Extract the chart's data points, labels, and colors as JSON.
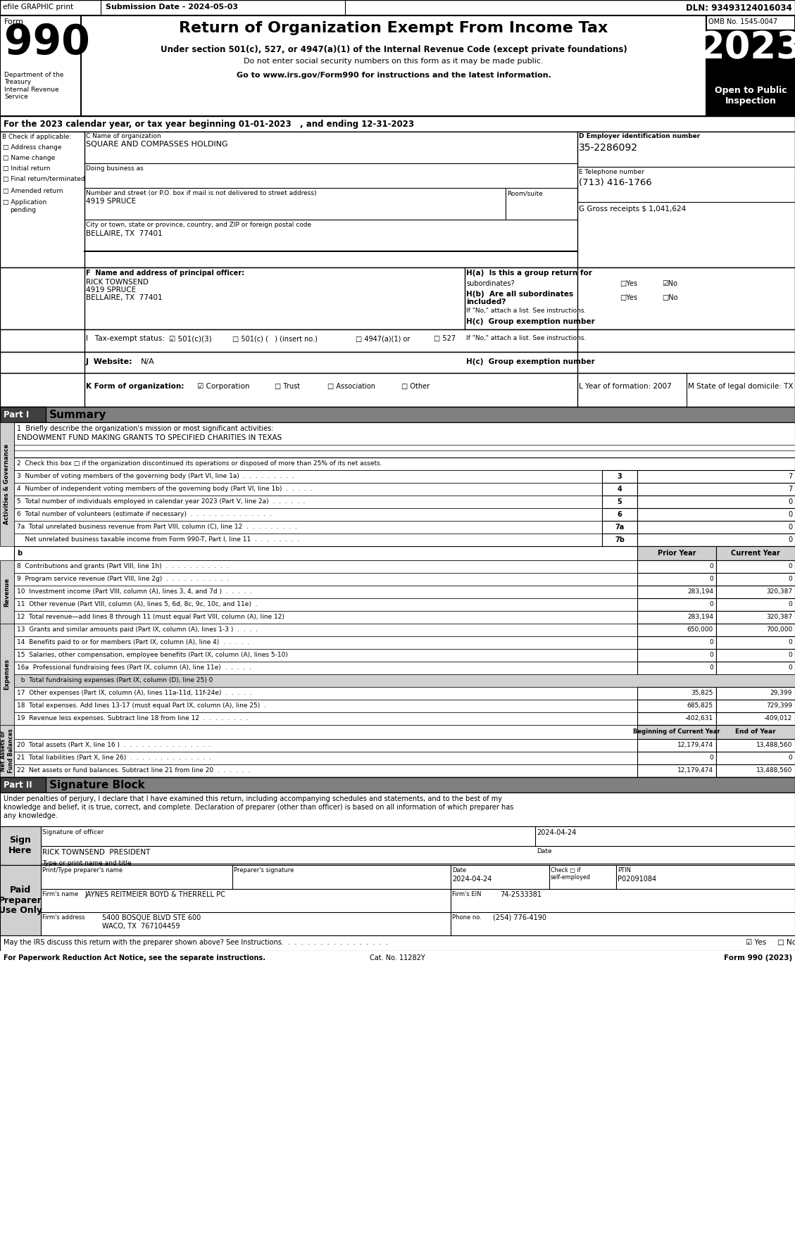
{
  "efile_text": "efile GRAPHIC print",
  "submission_date": "Submission Date - 2024-05-03",
  "dln": "DLN: 93493124016034",
  "form_label": "Form",
  "title": "Return of Organization Exempt From Income Tax",
  "subtitle1": "Under section 501(c), 527, or 4947(a)(1) of the Internal Revenue Code (except private foundations)",
  "subtitle2": "Do not enter social security numbers on this form as it may be made public.",
  "subtitle3": "Go to www.irs.gov/Form990 for instructions and the latest information.",
  "year": "2023",
  "omb": "OMB No. 1545-0047",
  "open_public": "Open to Public\nInspection",
  "dept_treasury": "Department of the\nTreasury\nInternal Revenue\nService",
  "tax_year_line": "For the 2023 calendar year, or tax year beginning 01-01-2023   , and ending 12-31-2023",
  "check_applicable_label": "B Check if applicable:",
  "check_items": [
    "Address change",
    "Name change",
    "Initial return",
    "Final return/terminated",
    "Amended return",
    "Application\npending"
  ],
  "org_name_label": "C Name of organization",
  "org_name": "SQUARE AND COMPASSES HOLDING",
  "dba_label": "Doing business as",
  "street_label": "Number and street (or P.O. box if mail is not delivered to street address)",
  "room_label": "Room/suite",
  "street": "4919 SPRUCE",
  "city_label": "City or town, state or province, country, and ZIP or foreign postal code",
  "city": "BELLAIRE, TX  77401",
  "ein_label": "D Employer identification number",
  "ein": "35-2286092",
  "phone_label": "E Telephone number",
  "phone": "(713) 416-1766",
  "gross_receipts": "G Gross receipts $ 1,041,624",
  "principal_officer_label": "F  Name and address of principal officer:",
  "principal_officer_line1": "RICK TOWNSEND",
  "principal_officer_line2": "4919 SPRUCE",
  "principal_officer_line3": "BELLAIRE, TX  77401",
  "ha_label": "H(a)  Is this a group return for",
  "ha_sub": "subordinates?",
  "hb_label_line1": "H(b)  Are all subordinates",
  "hb_label_line2": "included?",
  "hb_note": "If \"No,\" attach a list. See instructions.",
  "hc_label": "H(c)  Group exemption number",
  "tax_exempt_label": "I   Tax-exempt status:",
  "tax_501c3": "☑ 501(c)(3)",
  "tax_501c": "□ 501(c) (   ) (insert no.)",
  "tax_4947": "□ 4947(a)(1) or",
  "tax_527": "□ 527",
  "website_label": "J  Website:",
  "website": "N/A",
  "form_org_label": "K Form of organization:",
  "form_org_corp": "☑ Corporation",
  "form_org_trust": "□ Trust",
  "form_org_assoc": "□ Association",
  "form_org_other": "□ Other",
  "year_form": "L Year of formation: 2007",
  "state_domicile": "M State of legal domicile: TX",
  "part1_label": "Part I",
  "part1_title": "Summary",
  "line1_label": "1  Briefly describe the organization's mission or most significant activities:",
  "line1_value": "ENDOWMENT FUND MAKING GRANTS TO SPECIFIED CHARITIES IN TEXAS",
  "line2_label": "2  Check this box □ if the organization discontinued its operations or disposed of more than 25% of its net assets.",
  "line3_label": "3  Number of voting members of the governing body (Part VI, line 1a)  .  .  .  .  .  .  .  .  .",
  "line3_num": "3",
  "line3_val": "7",
  "line4_label": "4  Number of independent voting members of the governing body (Part VI, line 1b)  .  .  .  .  .",
  "line4_num": "4",
  "line4_val": "7",
  "line5_label": "5  Total number of individuals employed in calendar year 2023 (Part V, line 2a)  .  .  .  .  .  .",
  "line5_num": "5",
  "line5_val": "0",
  "line6_label": "6  Total number of volunteers (estimate if necessary)  .  .  .  .  .  .  .  .  .  .  .  .  .  .",
  "line6_num": "6",
  "line6_val": "0",
  "line7a_label": "7a  Total unrelated business revenue from Part VIII, column (C), line 12  .  .  .  .  .  .  .  .  .",
  "line7a_num": "7a",
  "line7a_val": "0",
  "line7b_label": "    Net unrelated business taxable income from Form 990-T, Part I, line 11  .  .  .  .  .  .  .  .",
  "line7b_num": "7b",
  "line7b_val": "0",
  "col_prior": "Prior Year",
  "col_current": "Current Year",
  "line8_label": "8  Contributions and grants (Part VIII, line 1h)  .  .  .  .  .  .  .  .  .  .  .",
  "line8_prior": "0",
  "line8_current": "0",
  "line9_label": "9  Program service revenue (Part VIII, line 2g)  .  .  .  .  .  .  .  .  .  .  .",
  "line9_prior": "0",
  "line9_current": "0",
  "line10_label": "10  Investment income (Part VIII, column (A), lines 3, 4, and 7d )  .  .  .  .  .",
  "line10_prior": "283,194",
  "line10_current": "320,387",
  "line11_label": "11  Other revenue (Part VIII, column (A), lines 5, 6d, 8c, 9c, 10c, and 11e)  .",
  "line11_prior": "0",
  "line11_current": "0",
  "line12_label": "12  Total revenue—add lines 8 through 11 (must equal Part VIII, column (A), line 12)",
  "line12_prior": "283,194",
  "line12_current": "320,387",
  "line13_label": "13  Grants and similar amounts paid (Part IX, column (A), lines 1-3 )  .  .  .  .",
  "line13_prior": "650,000",
  "line13_current": "700,000",
  "line14_label": "14  Benefits paid to or for members (Part IX, column (A), line 4)  .  .  .  .  .",
  "line14_prior": "0",
  "line14_current": "0",
  "line15_label": "15  Salaries, other compensation, employee benefits (Part IX, column (A), lines 5-10)",
  "line15_prior": "0",
  "line15_current": "0",
  "line16a_label": "16a  Professional fundraising fees (Part IX, column (A), line 11e)  .  .  .  .  .",
  "line16a_prior": "0",
  "line16a_current": "0",
  "line16b_label": "  b  Total fundraising expenses (Part IX, column (D), line 25) 0",
  "line17_label": "17  Other expenses (Part IX, column (A), lines 11a-11d, 11f-24e)  .  .  .  .  .",
  "line17_prior": "35,825",
  "line17_current": "29,399",
  "line18_label": "18  Total expenses. Add lines 13-17 (must equal Part IX, column (A), line 25)  .",
  "line18_prior": "685,825",
  "line18_current": "729,399",
  "line19_label": "19  Revenue less expenses. Subtract line 18 from line 12  .  .  .  .  .  .  .  .",
  "line19_prior": "-402,631",
  "line19_current": "-409,012",
  "col_beg": "Beginning of Current Year",
  "col_end": "End of Year",
  "line20_label": "20  Total assets (Part X, line 16 )  .  .  .  .  .  .  .  .  .  .  .  .  .  .  .",
  "line20_beg": "12,179,474",
  "line20_end": "13,488,560",
  "line21_label": "21  Total liabilities (Part X, line 26)  .  .  .  .  .  .  .  .  .  .  .  .  .  .",
  "line21_beg": "0",
  "line21_end": "0",
  "line22_label": "22  Net assets or fund balances. Subtract line 21 from line 20  .  .  .  .  .  .",
  "line22_beg": "12,179,474",
  "line22_end": "13,488,560",
  "part2_label": "Part II",
  "part2_title": "Signature Block",
  "sig_block_text1": "Under penalties of perjury, I declare that I have examined this return, including accompanying schedules and statements, and to the best of my",
  "sig_block_text2": "knowledge and belief, it is true, correct, and complete. Declaration of preparer (other than officer) is based on all information of which preparer has",
  "sig_block_text3": "any knowledge.",
  "sign_here": "Sign\nHere",
  "sig_officer_label": "Signature of officer",
  "sig_date_label": "Date",
  "sig_date_value": "2024-04-24",
  "sig_name": "RICK TOWNSEND  PRESIDENT",
  "sig_title_label": "Type or print name and title",
  "paid_preparer": "Paid\nPreparer\nUse Only",
  "prep_name_label": "Print/Type preparer's name",
  "prep_sig_label": "Preparer's signature",
  "prep_date_label": "Date",
  "prep_check_label": "Check □ if\nself-employed",
  "prep_ptin_label": "PTIN",
  "prep_date": "2024-04-24",
  "prep_ptin": "P02091084",
  "firm_name_label": "Firm's name",
  "firm_ein_label": "Firm's EIN",
  "firm_name": "JAYNES REITMEIER BOYD & THERRELL PC",
  "firm_ein": "74-2533381",
  "firm_address_label": "Firm's address",
  "firm_address": "5400 BOSQUE BLVD STE 600",
  "firm_city": "WACO, TX  767104459",
  "firm_phone_label": "Phone no.",
  "firm_phone": "(254) 776-4190",
  "discuss_label": "May the IRS discuss this return with the preparer shown above? See Instructions.  .  .  .  .  .  .  .  .  .  .  .  .  .  .  .  .",
  "discuss_yes": "☑ Yes",
  "discuss_no": "□ No",
  "cat_label": "Cat. No. 11282Y",
  "form_footer": "Form 990 (2023)",
  "footer_notice": "For Paperwork Reduction Act Notice, see the separate instructions.",
  "activities_label": "Activities & Governance",
  "revenue_label": "Revenue",
  "expenses_label": "Expenses",
  "net_assets_label": "Net Assets or\nFund Balances"
}
